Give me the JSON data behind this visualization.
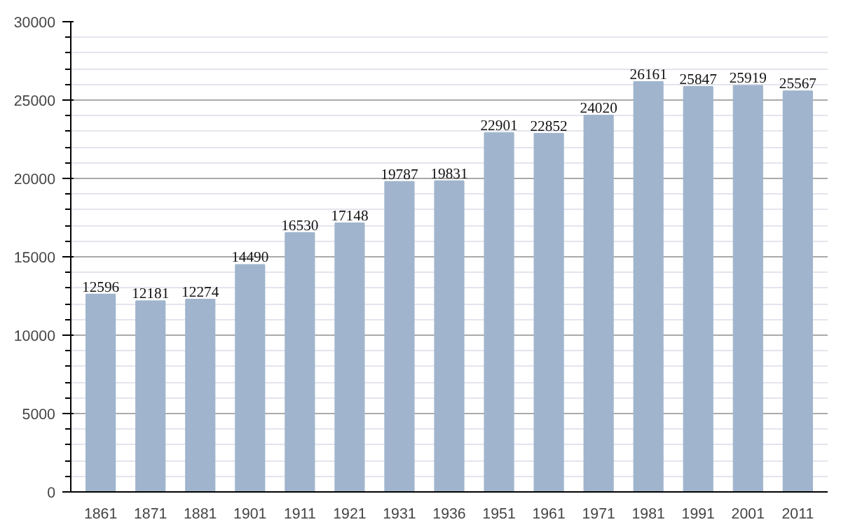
{
  "chart_data": {
    "type": "bar",
    "categories": [
      "1861",
      "1871",
      "1881",
      "1901",
      "1911",
      "1921",
      "1931",
      "1936",
      "1951",
      "1961",
      "1971",
      "1981",
      "1991",
      "2001",
      "2011"
    ],
    "values": [
      12596,
      12181,
      12274,
      14490,
      16530,
      17148,
      19787,
      19831,
      22901,
      22852,
      24020,
      26161,
      25847,
      25919,
      25567
    ],
    "color": "#a0b5cd",
    "ylim": [
      0,
      30000
    ],
    "yticks": [
      0,
      5000,
      10000,
      15000,
      20000,
      25000,
      30000
    ],
    "grid": "y",
    "data_labels": true
  }
}
